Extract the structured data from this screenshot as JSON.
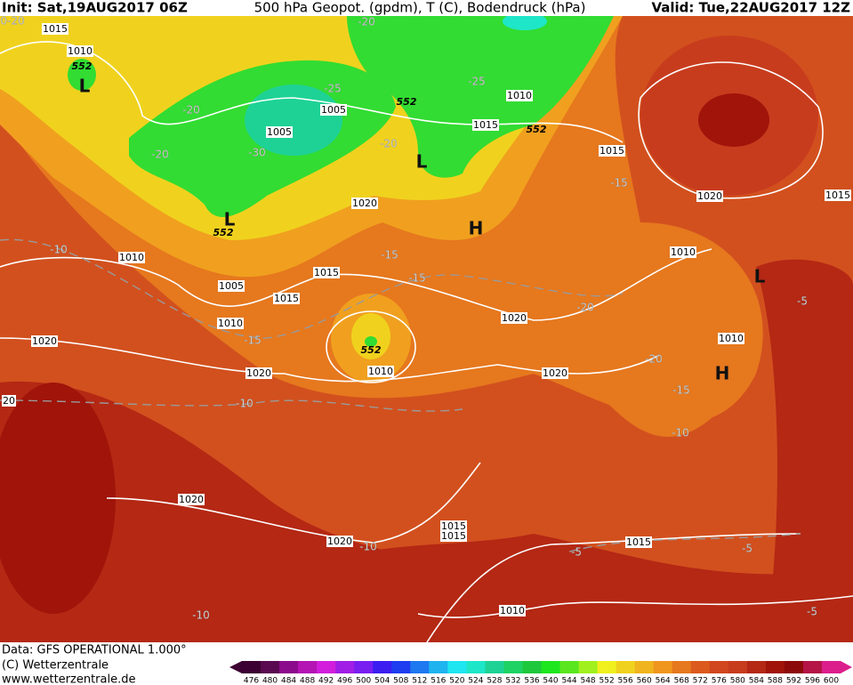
{
  "header": {
    "init": "Init: Sat,19AUG2017 06Z",
    "title": "500 hPa Geopot. (gpdm), T (C), Bodendruck (hPa)",
    "valid": "Valid: Tue,22AUG2017 12Z"
  },
  "map": {
    "isobar_labels": [
      "1015",
      "1010",
      "1005",
      "1005",
      "1010",
      "1015",
      "1015",
      "1020",
      "1015",
      "1020",
      "1010",
      "1005",
      "1015",
      "1015",
      "1010",
      "1020",
      "1020",
      "1010",
      "1010",
      "1020",
      "1020",
      "1010",
      "1020",
      "1020",
      "1015",
      "1015",
      "1015",
      "1010",
      "20"
    ],
    "temperature_labels": [
      "-20",
      "-25",
      "-25",
      "-20",
      "-30",
      "-20",
      "-20",
      "-15",
      "-10",
      "-15",
      "-15",
      "-20",
      "-15",
      "-10",
      "-20",
      "-15",
      "-10",
      "-5",
      "-10",
      "-5",
      "-5",
      "-10",
      "-5",
      "0-20"
    ],
    "height_labels": [
      "552",
      "552",
      "552",
      "552",
      "552"
    ],
    "pressure_centers": [
      "H",
      "H",
      "L",
      "L",
      "L",
      "L"
    ]
  },
  "footer": [
    "Data: GFS OPERATIONAL 1.000°",
    "(C) Wetterzentrale",
    "www.wetterzentrale.de"
  ],
  "legend": {
    "values": [
      476,
      480,
      484,
      488,
      492,
      496,
      500,
      504,
      508,
      512,
      516,
      520,
      524,
      528,
      532,
      536,
      540,
      544,
      548,
      552,
      556,
      560,
      564,
      568,
      572,
      576,
      580,
      584,
      588,
      592,
      596,
      600
    ],
    "colors": [
      "#3c0032",
      "#5a0a50",
      "#8c0a8c",
      "#b414b4",
      "#d21edc",
      "#a01ee6",
      "#781ef0",
      "#3c1ef0",
      "#1e3cf0",
      "#1e78f0",
      "#1eb4f0",
      "#1ee6f0",
      "#1ee6c8",
      "#1ed296",
      "#1ed264",
      "#1ec83c",
      "#1ee61e",
      "#5ae61e",
      "#a0f01e",
      "#f0f01e",
      "#f0d21e",
      "#f0b41e",
      "#f0961e",
      "#e6781e",
      "#dc5a1e",
      "#d2461e",
      "#c83c1e",
      "#b42814",
      "#a0140a",
      "#8c0a0a",
      "#b41446",
      "#dc1e8c"
    ]
  }
}
